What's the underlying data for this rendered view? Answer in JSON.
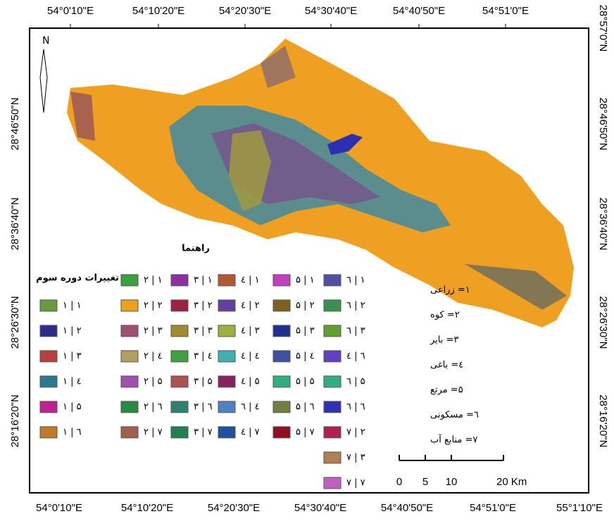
{
  "axes": {
    "top": [
      "54°0'10\"E",
      "54°10'20\"E",
      "54°20'30\"E",
      "54°30'40\"E",
      "54°40'50\"E",
      "54°51'0\"E"
    ],
    "bottom": [
      "54°0'10\"E",
      "54°10'20\"E",
      "54°20'30\"E",
      "54°30'40\"E",
      "54°40'50\"E",
      "54°51'0\"E",
      "55°1'10\"E"
    ],
    "left": [
      "28°46'50\"N",
      "28°36'40\"N",
      "28°26'30\"N",
      "28°16'20\"N"
    ],
    "right": [
      "28°57'0\"N",
      "28°46'50\"N",
      "28°36'40\"N",
      "28°26'30\"N",
      "28°16'20\"N"
    ]
  },
  "north": "N",
  "legend": {
    "title": "راهنما",
    "subtitle": "تغییرات دوره سوم",
    "columns": [
      {
        "items": [
          {
            "label": "۱ | ۱",
            "color": "#6a9a40"
          },
          {
            "label": "۱ | ۲",
            "color": "#2e2d8c"
          },
          {
            "label": "۱ | ۳",
            "color": "#b84040"
          },
          {
            "label": "۱ | ٤",
            "color": "#2a7a90"
          },
          {
            "label": "۱ | ۵",
            "color": "#c02090"
          },
          {
            "label": "۱ | ٦",
            "color": "#c07a2a"
          }
        ]
      },
      {
        "items": [
          {
            "label": "۲ | ۱",
            "color": "#3aa040"
          },
          {
            "label": "۲ | ۲",
            "color": "#f0a020"
          },
          {
            "label": "۲ | ۳",
            "color": "#a05070"
          },
          {
            "label": "۲ | ٤",
            "color": "#b0a060"
          },
          {
            "label": "۲ | ۵",
            "color": "#a050b0"
          },
          {
            "label": "۲ | ٦",
            "color": "#2a8a40"
          },
          {
            "label": "۲ | ۷",
            "color": "#a06050"
          }
        ]
      },
      {
        "items": [
          {
            "label": "۳ | ۱",
            "color": "#8a30a0"
          },
          {
            "label": "۳ | ۲",
            "color": "#a02040"
          },
          {
            "label": "۳ | ۳",
            "color": "#a08a30"
          },
          {
            "label": "۳ | ٤",
            "color": "#40a040"
          },
          {
            "label": "۳ | ۵",
            "color": "#b05050"
          },
          {
            "label": "۳ | ٦",
            "color": "#308070"
          },
          {
            "label": "۳ | ۷",
            "color": "#208050"
          }
        ]
      },
      {
        "items": [
          {
            "label": "٤ | ۱",
            "color": "#b05a30"
          },
          {
            "label": "٤ | ۲",
            "color": "#6040a0"
          },
          {
            "label": "٤ | ۳",
            "color": "#a0b040"
          },
          {
            "label": "٤ | ٤",
            "color": "#40b0b0"
          },
          {
            "label": "٤ | ۵",
            "color": "#8a2060"
          },
          {
            "label": "٤ | ٦",
            "color": "#5080c0"
          },
          {
            "label": "٤ | ۷",
            "color": "#2050a0"
          }
        ]
      },
      {
        "items": [
          {
            "label": "۵ | ۱",
            "color": "#c040c0"
          },
          {
            "label": "۵ | ۲",
            "color": "#806020"
          },
          {
            "label": "۵ | ۳",
            "color": "#203090"
          },
          {
            "label": "۵ | ٤",
            "color": "#4050a0"
          },
          {
            "label": "۵ | ۵",
            "color": "#30b080"
          },
          {
            "label": "۵ | ٦",
            "color": "#708040"
          },
          {
            "label": "۵ | ۷",
            "color": "#901020"
          }
        ]
      },
      {
        "items": [
          {
            "label": "٦ | ۱",
            "color": "#5050a0"
          },
          {
            "label": "٦ | ۲",
            "color": "#3a9050"
          },
          {
            "label": "٦ | ۳",
            "color": "#60a030"
          },
          {
            "label": "٦ | ٤",
            "color": "#6040c0"
          },
          {
            "label": "٦ | ۵",
            "color": "#30b080"
          },
          {
            "label": "٦ | ٦",
            "color": "#3030b0"
          },
          {
            "label": "۷ | ۲",
            "color": "#b02050"
          },
          {
            "label": "۷ | ۳",
            "color": "#b08050"
          },
          {
            "label": "۷ | ۷",
            "color": "#c060c0"
          }
        ]
      }
    ]
  },
  "key": [
    "۱= زراعی",
    "۲= کوه",
    "۳= بایر",
    "٤= باغی",
    "۵= مرتع",
    "٦= مسکونی",
    "۷= منابع آب"
  ],
  "scale": [
    "0",
    "5",
    "10",
    "20 Km"
  ]
}
